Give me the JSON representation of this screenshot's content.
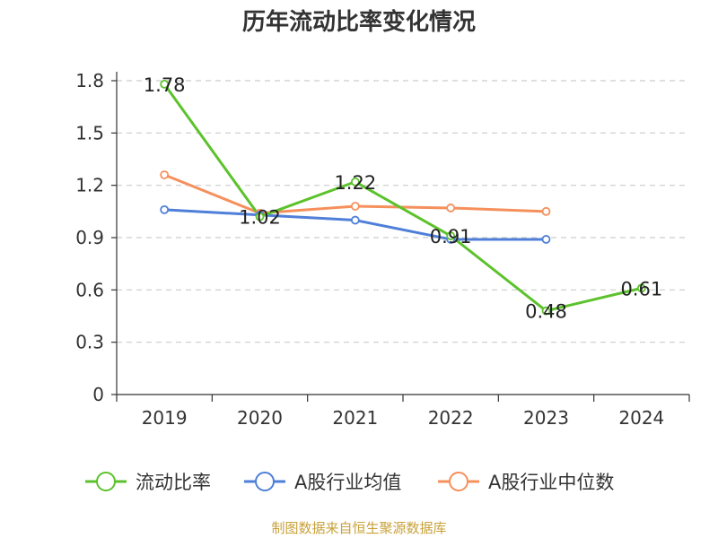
{
  "title": "历年流动比率变化情况",
  "source": "制图数据来自恒生聚源数据库",
  "chart_data": {
    "type": "line",
    "categories": [
      "2019",
      "2020",
      "2021",
      "2022",
      "2023",
      "2024"
    ],
    "y_ticks": [
      "0",
      "0.3",
      "0.6",
      "0.9",
      "1.2",
      "1.5",
      "1.8"
    ],
    "ylim": [
      0,
      1.8
    ],
    "grid": true,
    "legend_position": "bottom",
    "series": [
      {
        "name": "流动比率",
        "color": "#5cc22b",
        "values": [
          1.78,
          1.02,
          1.22,
          0.91,
          0.48,
          0.61
        ],
        "labels": [
          "1.78",
          "1.02",
          "1.22",
          "0.91",
          "0.48",
          "0.61"
        ]
      },
      {
        "name": "A股行业均值",
        "color": "#4f7fd8",
        "values": [
          1.06,
          1.03,
          1.0,
          0.89,
          0.89,
          null
        ]
      },
      {
        "name": "A股行业中位数",
        "color": "#f5905c",
        "values": [
          1.26,
          1.04,
          1.08,
          1.07,
          1.05,
          null
        ]
      }
    ]
  }
}
